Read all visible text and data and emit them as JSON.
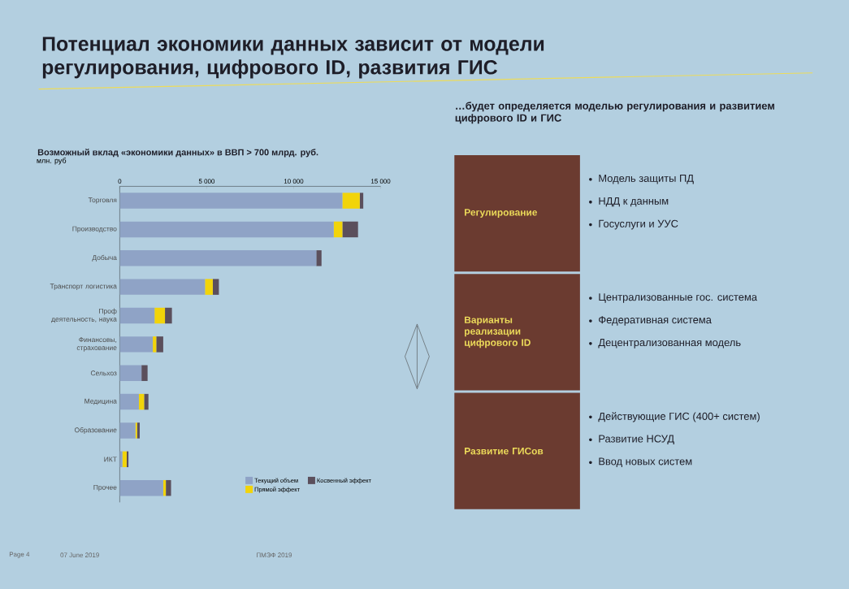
{
  "chart_data": [
    {
      "type": "bar",
      "orientation": "horizontal",
      "stacked": true,
      "title": "Потенциал экономики данных зависит от модели регулирования, цифрового ID, развития ГИС",
      "subtitle": "Возможный вклад «экономики данных» в ВВП > 700 млрд. руб.",
      "xlabel": "млн. руб",
      "categories": [
        "Торговля",
        "Производство",
        "Добыча",
        "Транспорт логистика",
        "Проф деятельность, наука",
        "Финансовы, страхование",
        "Сельхоз",
        "Медицина",
        "Образование",
        "ИКТ",
        "Прочее"
      ],
      "series": [
        {
          "name": "Текущий объем",
          "color": "#8fa3c6",
          "values": [
            12800,
            12300,
            11300,
            4900,
            2000,
            1900,
            1250,
            1100,
            900,
            150,
            2500
          ]
        },
        {
          "name": "Прямой эффект",
          "color": "#f2d40a",
          "values": [
            1000,
            500,
            0,
            450,
            600,
            200,
            0,
            300,
            100,
            250,
            150
          ]
        },
        {
          "name": "Косвенный эффект",
          "color": "#5b4f5c",
          "values": [
            200,
            900,
            300,
            350,
            400,
            400,
            350,
            250,
            150,
            100,
            300
          ]
        }
      ],
      "xlim": [
        0,
        15000
      ],
      "xticks": [
        0,
        {
          "value": 5000,
          "label": "5 000"
        },
        {
          "value": 10000,
          "label": "10 000"
        },
        {
          "value": 15000,
          "label": "15 000"
        }
      ],
      "legend": "bottom right",
      "annotations": [
        "Page 4",
        "07 June 2019",
        "ПМЭФ 2019"
      ]
    },
    {
      "type": "other",
      "title": "…будет определяется моделью регулирования и развитием цифрового ID и ГИС",
      "annotations": [
        "Регулирование",
        "Модель защиты ПД",
        "НДД к данным",
        "Госуслуги и УУС",
        "Варианты реализации цифрового ID",
        "Централизованные гос. система",
        "Федеративная система",
        "Децентрализованная модель",
        "Развитие ГИСов",
        "Действующие ГИС (400+ систем)",
        "Развитие НСУД",
        "Ввод новых систем"
      ]
    }
  ]
}
